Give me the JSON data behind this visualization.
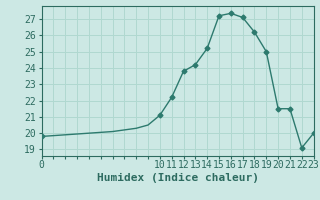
{
  "xlabel": "Humidex (Indice chaleur)",
  "ylabel": "",
  "bg_color": "#cce8e4",
  "grid_color": "#b0d8d0",
  "line_color": "#2d7a6e",
  "marker_color": "#2d7a6e",
  "hours": [
    0,
    1,
    2,
    3,
    4,
    5,
    6,
    7,
    8,
    9,
    10,
    11,
    12,
    13,
    14,
    15,
    16,
    17,
    18,
    19,
    20,
    21,
    22,
    23
  ],
  "values": [
    19.8,
    19.85,
    19.9,
    19.95,
    20.0,
    20.05,
    20.1,
    20.2,
    20.3,
    20.5,
    21.1,
    22.2,
    23.8,
    24.2,
    25.2,
    27.2,
    27.35,
    27.1,
    26.2,
    25.0,
    21.5,
    21.5,
    19.1,
    20.0
  ],
  "ylim": [
    18.6,
    27.8
  ],
  "yticks": [
    19,
    20,
    21,
    22,
    23,
    24,
    25,
    26,
    27
  ],
  "xlim": [
    0,
    23
  ],
  "xticks_all": [
    0,
    1,
    2,
    3,
    4,
    5,
    6,
    7,
    8,
    9,
    10,
    11,
    12,
    13,
    14,
    15,
    16,
    17,
    18,
    19,
    20,
    21,
    22,
    23
  ],
  "xticks_labeled": [
    0,
    10,
    11,
    12,
    13,
    14,
    15,
    16,
    17,
    18,
    19,
    20,
    21,
    22,
    23
  ],
  "show_markers_from": 10,
  "font_color": "#2d6b60",
  "xlabel_fontsize": 8,
  "tick_fontsize": 7,
  "figsize": [
    3.2,
    2.0
  ],
  "dpi": 100
}
